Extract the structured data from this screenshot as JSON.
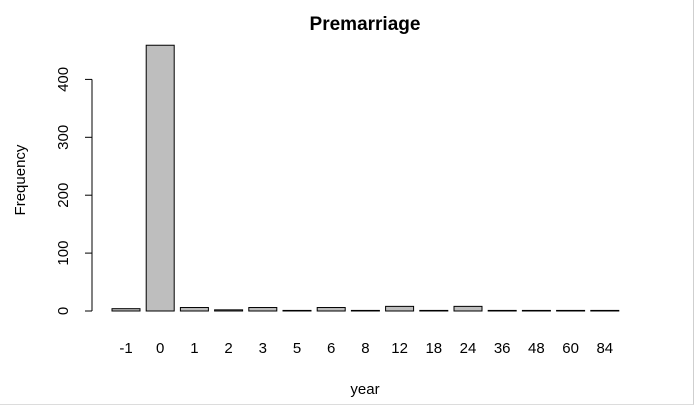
{
  "chart_data": {
    "type": "bar",
    "title": "Premarriage",
    "xlabel": "year",
    "ylabel": "Frequency",
    "categories": [
      "-1",
      "0",
      "1",
      "2",
      "3",
      "5",
      "6",
      "8",
      "12",
      "18",
      "24",
      "36",
      "48",
      "60",
      "84"
    ],
    "values": [
      4,
      459,
      6,
      2,
      6,
      1,
      6,
      1,
      8,
      1,
      8,
      1,
      1,
      1,
      1
    ],
    "yticks": [
      0,
      100,
      200,
      300,
      400
    ],
    "ylim": [
      0,
      460
    ],
    "grid": false,
    "bar_color": "#bebebe",
    "edge_color": "#000000"
  }
}
